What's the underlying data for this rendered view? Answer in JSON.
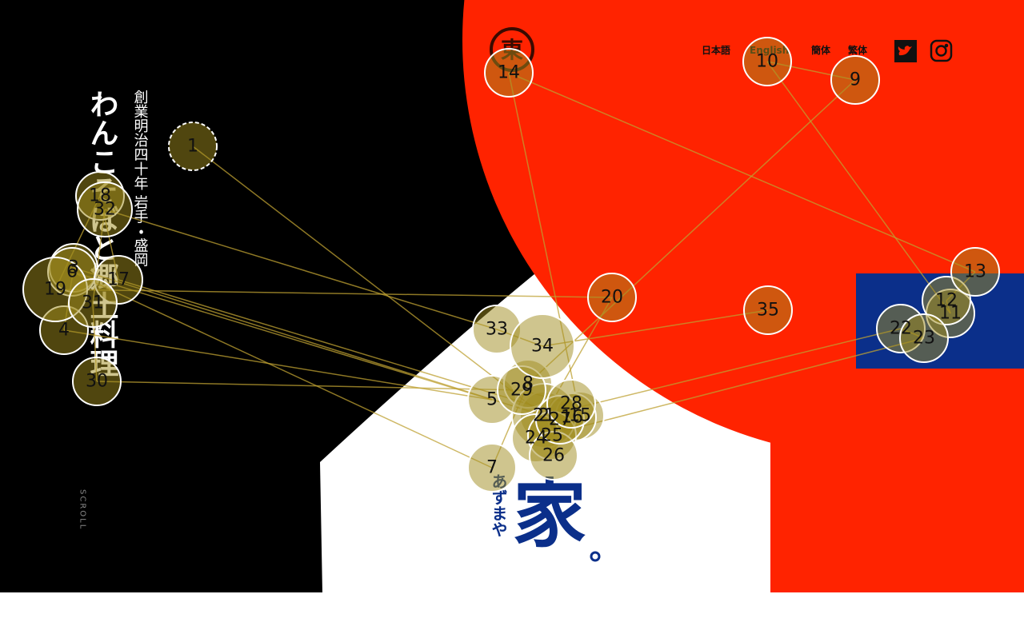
{
  "logo": "東",
  "nav": [
    "日本語",
    "English",
    "簡体",
    "繁体"
  ],
  "heading": "わんこそばと郷土料理",
  "tagline": "創業明治四十年 岩手・盛岡",
  "scroll": "SCROLL",
  "brand": {
    "kanji": "家",
    "kana": "あずまや"
  },
  "markers": [
    1,
    2,
    3,
    4,
    5,
    6,
    7,
    8,
    9,
    10,
    11,
    12,
    13,
    14,
    15,
    16,
    17,
    18,
    19,
    20,
    21,
    22,
    23,
    24,
    25,
    26,
    27,
    28,
    29,
    30,
    31,
    32,
    33,
    34,
    35
  ]
}
